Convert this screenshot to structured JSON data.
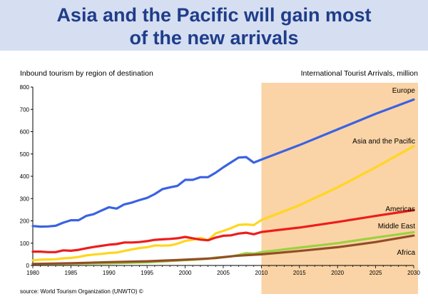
{
  "slide": {
    "title_line1": "Asia and the Pacific will gain most",
    "title_line2": "of the new arrivals",
    "subtitle": "Inbound tourism by region of destination",
    "unit_label": "International Tourist Arrivals, million",
    "source": "source: World Tourism Organization (UNWTO) ©"
  },
  "chart_data": {
    "type": "line",
    "title": "Inbound tourism by region of destination",
    "ylabel": "International Tourist Arrivals, million",
    "xlim": [
      1980,
      2030
    ],
    "ylim": [
      0,
      800
    ],
    "xticks": [
      1980,
      1985,
      1990,
      1995,
      2000,
      2005,
      2010,
      2015,
      2020,
      2025,
      2030
    ],
    "yticks": [
      0,
      100,
      200,
      300,
      400,
      500,
      600,
      700,
      800
    ],
    "projection_start": 2010,
    "projection_color": "#fad4a6",
    "grid": false,
    "series": [
      {
        "name": "Europe",
        "color": "#3b62e3",
        "x": [
          1980,
          1981,
          1982,
          1983,
          1984,
          1985,
          1986,
          1987,
          1988,
          1989,
          1990,
          1991,
          1992,
          1993,
          1994,
          1995,
          1996,
          1997,
          1998,
          1999,
          2000,
          2001,
          2002,
          2003,
          2004,
          2005,
          2006,
          2007,
          2008,
          2009,
          2010,
          2015,
          2020,
          2025,
          2030
        ],
        "values": [
          177,
          174,
          175,
          178,
          192,
          203,
          203,
          222,
          230,
          246,
          261,
          255,
          274,
          282,
          293,
          303,
          320,
          342,
          350,
          357,
          384,
          384,
          396,
          396,
          416,
          440,
          462,
          484,
          486,
          461,
          475,
          540,
          610,
          680,
          744
        ]
      },
      {
        "name": "Asia and the Pacific",
        "color": "#ffd61f",
        "x": [
          1980,
          1981,
          1982,
          1983,
          1984,
          1985,
          1986,
          1987,
          1988,
          1989,
          1990,
          1991,
          1992,
          1993,
          1994,
          1995,
          1996,
          1997,
          1998,
          1999,
          2000,
          2001,
          2002,
          2003,
          2004,
          2005,
          2006,
          2007,
          2008,
          2009,
          2010,
          2015,
          2020,
          2025,
          2030
        ],
        "values": [
          23,
          26,
          27,
          28,
          32,
          34,
          38,
          45,
          49,
          52,
          56,
          58,
          65,
          72,
          78,
          82,
          90,
          89,
          90,
          98,
          110,
          115,
          124,
          113,
          144,
          155,
          167,
          182,
          184,
          181,
          204,
          270,
          350,
          440,
          535
        ]
      },
      {
        "name": "Americas",
        "color": "#ee1c1c",
        "x": [
          1980,
          1981,
          1982,
          1983,
          1984,
          1985,
          1986,
          1987,
          1988,
          1989,
          1990,
          1991,
          1992,
          1993,
          1994,
          1995,
          1996,
          1997,
          1998,
          1999,
          2000,
          2001,
          2002,
          2003,
          2004,
          2005,
          2006,
          2007,
          2008,
          2009,
          2010,
          2015,
          2020,
          2025,
          2030
        ],
        "values": [
          62,
          62,
          60,
          60,
          68,
          66,
          70,
          77,
          83,
          88,
          93,
          96,
          103,
          103,
          105,
          109,
          115,
          117,
          119,
          122,
          128,
          122,
          116,
          113,
          125,
          133,
          135,
          143,
          147,
          140,
          150,
          170,
          195,
          222,
          248
        ]
      },
      {
        "name": "Middle East",
        "color": "#9bd141",
        "x": [
          1980,
          1985,
          1990,
          1995,
          2000,
          2001,
          2002,
          2003,
          2004,
          2005,
          2006,
          2007,
          2008,
          2009,
          2010,
          2015,
          2020,
          2025,
          2030
        ],
        "values": [
          7,
          8,
          10,
          14,
          24,
          25,
          28,
          30,
          36,
          37,
          40,
          47,
          55,
          53,
          60,
          80,
          100,
          125,
          149
        ]
      },
      {
        "name": "Africa",
        "color": "#944d26",
        "x": [
          1980,
          1985,
          1990,
          1995,
          2000,
          2001,
          2002,
          2003,
          2004,
          2005,
          2006,
          2007,
          2008,
          2009,
          2010,
          2015,
          2020,
          2025,
          2030
        ],
        "values": [
          7,
          10,
          15,
          19,
          26,
          28,
          29,
          31,
          33,
          37,
          41,
          44,
          46,
          48,
          50,
          65,
          82,
          105,
          134
        ]
      }
    ],
    "annotations": [
      {
        "text": "Europe",
        "series": "Europe"
      },
      {
        "text": "Asia and the Pacific",
        "series": "Asia and the Pacific"
      },
      {
        "text": "Americas",
        "series": "Americas"
      },
      {
        "text": "Middle East",
        "series": "Middle East"
      },
      {
        "text": "Africa",
        "series": "Africa"
      }
    ]
  }
}
